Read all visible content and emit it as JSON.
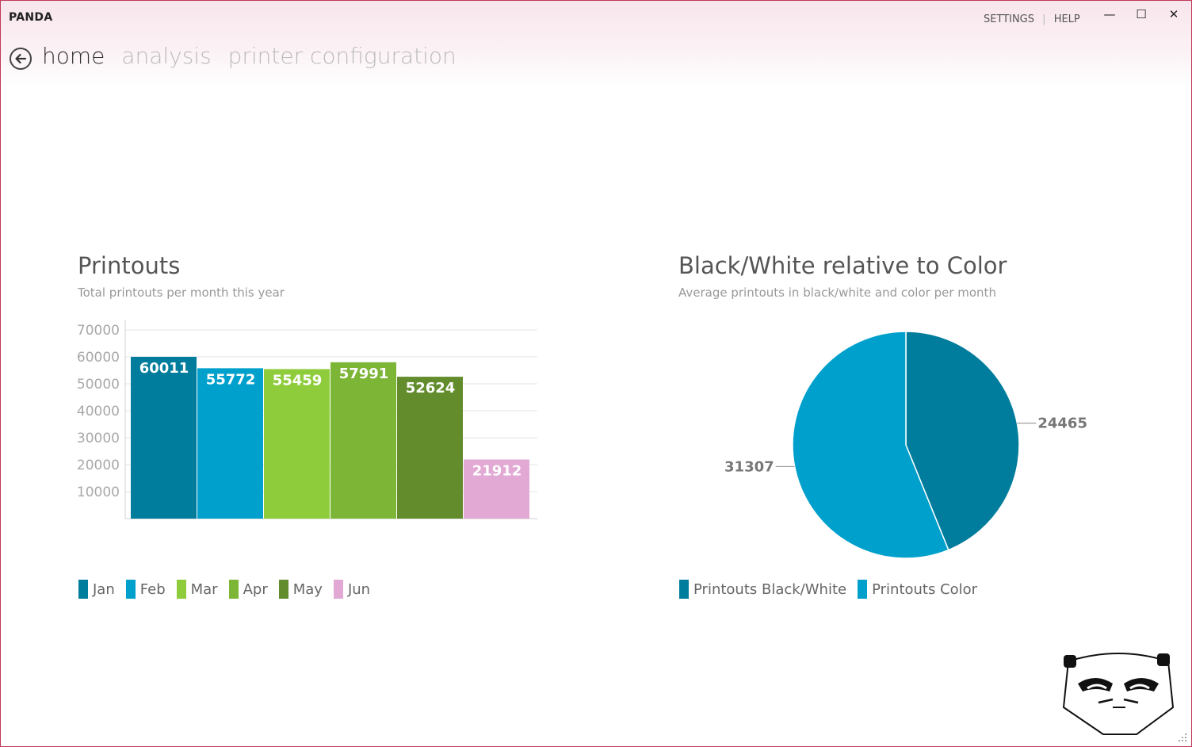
{
  "app": {
    "title": "PANDA",
    "settings_label": "SETTINGS",
    "separator": "|",
    "help_label": "HELP",
    "minimize_icon": "—",
    "maximize_icon": "☐",
    "close_icon": "✕"
  },
  "nav": {
    "items": [
      {
        "label": "home",
        "active": true
      },
      {
        "label": "analysis",
        "active": false
      },
      {
        "label": "printer configuration",
        "active": false
      }
    ]
  },
  "colors": {
    "jan": "#007c9c",
    "feb": "#00a0cc",
    "mar": "#8fcc3c",
    "apr": "#7db537",
    "may": "#638c2d",
    "jun": "#e2a9d4",
    "bw": "#007c9c",
    "color": "#00a0cc"
  },
  "printouts": {
    "title": "Printouts",
    "subtitle": "Total printouts per month this year",
    "legend": [
      "Jan",
      "Feb",
      "Mar",
      "Apr",
      "May",
      "Jun"
    ]
  },
  "ratio": {
    "title": "Black/White relative to Color",
    "subtitle": "Average printouts in black/white and color per month",
    "legend": [
      "Printouts Black/White",
      "Printouts Color"
    ]
  },
  "chart_data": [
    {
      "type": "bar",
      "title": "Printouts",
      "subtitle": "Total printouts per month this year",
      "categories": [
        "Jan",
        "Feb",
        "Mar",
        "Apr",
        "May",
        "Jun"
      ],
      "values": [
        60011,
        55772,
        55459,
        57991,
        52624,
        21912
      ],
      "yticks": [
        10000,
        20000,
        30000,
        40000,
        50000,
        60000,
        70000
      ],
      "ylim": [
        0,
        70000
      ],
      "grid": true,
      "legend": "bottom-left"
    },
    {
      "type": "pie",
      "title": "Black/White relative to Color",
      "subtitle": "Average printouts in black/white and color per month",
      "labels": [
        "Printouts Black/White",
        "Printouts Color"
      ],
      "values": [
        24465,
        31307
      ],
      "legend": "bottom"
    }
  ],
  "mascot": {
    "name": "panda-face-icon"
  }
}
